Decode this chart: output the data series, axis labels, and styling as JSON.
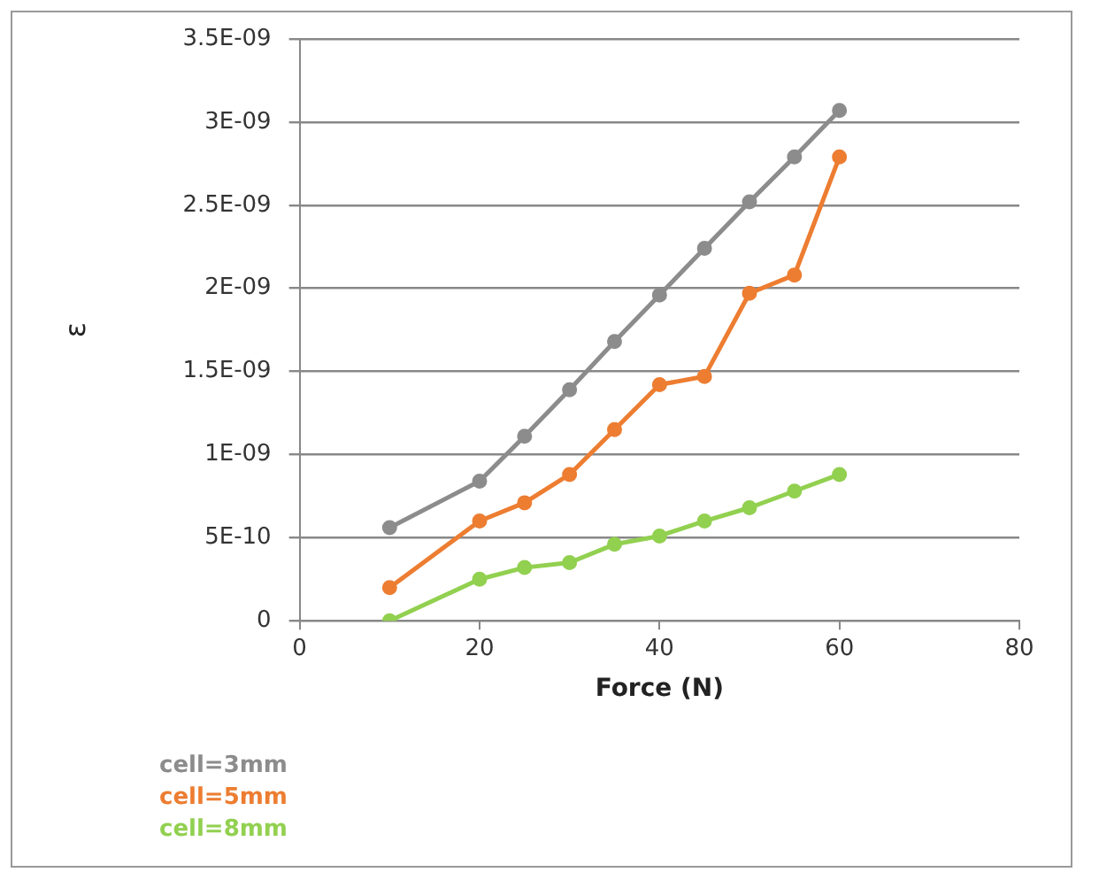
{
  "chart_data": {
    "type": "line",
    "xlabel": "Force (N)",
    "ylabel": "ε",
    "xlim": [
      0,
      80
    ],
    "xticks": [
      0,
      20,
      40,
      60,
      80
    ],
    "ylim": [
      0,
      3.5e-09
    ],
    "yticks": [
      0,
      {
        "value": 5e-10,
        "label": "5E-10"
      },
      {
        "value": 1e-09,
        "label": "1E-09"
      },
      {
        "value": 1.5e-09,
        "label": "1.5E-09"
      },
      {
        "value": 2e-09,
        "label": "2E-09"
      },
      {
        "value": 2.5e-09,
        "label": "2.5E-09"
      },
      {
        "value": 3e-09,
        "label": "3E-09"
      },
      {
        "value": 3.5e-09,
        "label": "3.5E-09"
      }
    ],
    "x": [
      10,
      20,
      25,
      30,
      35,
      40,
      45,
      50,
      55,
      60
    ],
    "series": [
      {
        "name": "cell=3mm",
        "color": "#8c8c8c",
        "values": [
          5.6e-10,
          8.4e-10,
          1.11e-09,
          1.39e-09,
          1.68e-09,
          1.96e-09,
          2.24e-09,
          2.52e-09,
          2.79e-09,
          3.07e-09
        ]
      },
      {
        "name": "cell=5mm",
        "color": "#ed7d31",
        "values": [
          2e-10,
          6e-10,
          7.1e-10,
          8.8e-10,
          1.15e-09,
          1.42e-09,
          1.47e-09,
          1.97e-09,
          2.08e-09,
          2.79e-09
        ]
      },
      {
        "name": "cell=8mm",
        "color": "#92d050",
        "values": [
          0,
          2.5e-10,
          3.2e-10,
          3.5e-10,
          4.6e-10,
          5.1e-10,
          6e-10,
          6.8e-10,
          7.8e-10,
          8.8e-10
        ]
      }
    ],
    "grid": "y",
    "legend": "bottom left",
    "marker": "circle",
    "line_style": "solid"
  }
}
